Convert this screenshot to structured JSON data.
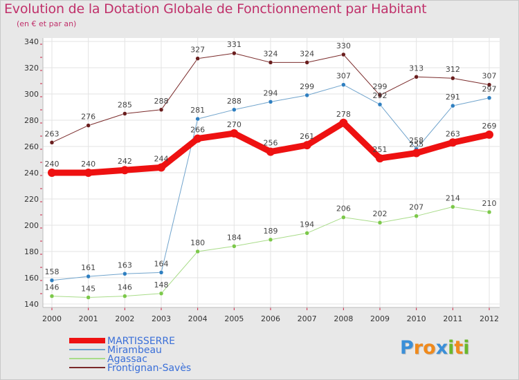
{
  "header": {
    "title": "Evolution de la Dotation Globale de Fonctionnement par Habitant",
    "subtitle": "(en € et par an)"
  },
  "brand": {
    "text": "Proxiti",
    "letters": [
      "P",
      "r",
      "o",
      "x",
      "i",
      "t",
      "i"
    ],
    "colors": [
      "#3a8fd8",
      "#f08a1c",
      "#f08a1c",
      "#3a8fd8",
      "#6ab82c",
      "#f08a1c",
      "#6ab82c"
    ]
  },
  "chart_data": {
    "type": "line",
    "title": "Evolution de la Dotation Globale de Fonctionnement par Habitant",
    "subtitle": "(en € et par an)",
    "xlabel": "",
    "ylabel": "",
    "ylim": [
      140,
      340
    ],
    "yticks": [
      140,
      160,
      180,
      200,
      220,
      240,
      260,
      280,
      300,
      320,
      340
    ],
    "grid": true,
    "legend_position": "bottom-left",
    "categories": [
      "2000",
      "2001",
      "2002",
      "2003",
      "2004",
      "2005",
      "2006",
      "2007",
      "2008",
      "2009",
      "2010",
      "2011",
      "2012"
    ],
    "series": [
      {
        "name": "Frontignan-Savès",
        "color": "#7a2a2a",
        "marker": "#6a1e1e",
        "width": 1,
        "values": [
          263,
          276,
          285,
          288,
          327,
          331,
          324,
          324,
          330,
          299,
          313,
          312,
          307
        ]
      },
      {
        "name": "Mirambeau",
        "color": "#6fa3cc",
        "marker": "#2f7fc0",
        "width": 1,
        "values": [
          158,
          161,
          163,
          164,
          281,
          288,
          294,
          299,
          307,
          292,
          258,
          291,
          297
        ]
      },
      {
        "name": "Agassac",
        "color": "#a8dc88",
        "marker": "#7cc84a",
        "width": 1,
        "values": [
          146,
          145,
          146,
          148,
          180,
          184,
          189,
          194,
          206,
          202,
          207,
          214,
          210
        ]
      },
      {
        "name": "MARTISSERRE",
        "color": "#ee1111",
        "marker": "#ee1111",
        "width": 9,
        "values": [
          240,
          240,
          242,
          244,
          266,
          270,
          256,
          261,
          278,
          251,
          255,
          263,
          269
        ]
      }
    ],
    "legend": [
      {
        "name": "MARTISSERRE",
        "color": "#ee1111",
        "text_color": "#3a6fd8"
      },
      {
        "name": "Mirambeau",
        "color": "#6fa3cc",
        "text_color": "#3a6fd8"
      },
      {
        "name": "Agassac",
        "color": "#a8dc88",
        "text_color": "#3a6fd8"
      },
      {
        "name": "Frontignan-Savès",
        "color": "#7a2a2a",
        "text_color": "#3a6fd8"
      }
    ]
  }
}
